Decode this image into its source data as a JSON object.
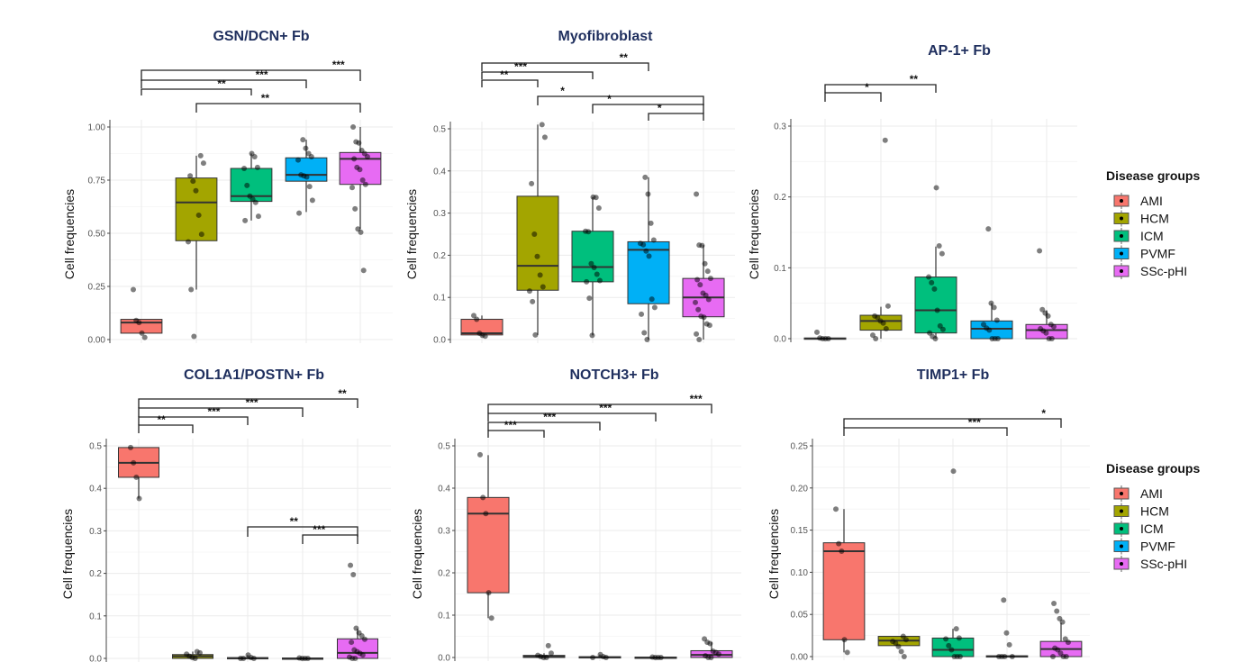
{
  "legend": {
    "title": "Disease groups",
    "groups": [
      {
        "name": "AMI",
        "color": "#F8766D"
      },
      {
        "name": "HCM",
        "color": "#A3A500"
      },
      {
        "name": "ICM",
        "color": "#00BF7D"
      },
      {
        "name": "PVMF",
        "color": "#00B0F6"
      },
      {
        "name": "SSc-pHI",
        "color": "#E76BF3"
      }
    ]
  },
  "chart_data": [
    {
      "type": "box",
      "title": "GSN/DCN+ Fb",
      "ylabel": "Cell frequencies",
      "xlabel": "",
      "ylim": [
        0,
        1.0
      ],
      "yticks": [
        "0.00",
        "0.25",
        "0.50",
        "0.75",
        "1.00"
      ],
      "ytick_values": [
        0,
        0.25,
        0.5,
        0.75,
        1.0
      ],
      "categories": [
        "AMI",
        "HCM",
        "ICM",
        "PVMF",
        "SSc-pHI"
      ],
      "boxes": [
        {
          "q1": 0.03,
          "median": 0.08,
          "q3": 0.095,
          "wlo": 0.03,
          "whi": 0.095
        },
        {
          "q1": 0.465,
          "median": 0.645,
          "q3": 0.76,
          "wlo": 0.235,
          "whi": 0.865
        },
        {
          "q1": 0.65,
          "median": 0.675,
          "q3": 0.805,
          "wlo": 0.56,
          "whi": 0.875
        },
        {
          "q1": 0.745,
          "median": 0.775,
          "q3": 0.855,
          "wlo": 0.6,
          "whi": 0.94
        },
        {
          "q1": 0.73,
          "median": 0.85,
          "q3": 0.88,
          "wlo": 0.52,
          "whi": 1.0
        }
      ],
      "points": [
        [
          0.235,
          0.09,
          0.08,
          0.03,
          0.01
        ],
        [
          0.865,
          0.83,
          0.77,
          0.745,
          0.7,
          0.585,
          0.495,
          0.46,
          0.235,
          0.015
        ],
        [
          0.875,
          0.86,
          0.81,
          0.805,
          0.725,
          0.675,
          0.66,
          0.645,
          0.58,
          0.56
        ],
        [
          0.94,
          0.9,
          0.875,
          0.86,
          0.845,
          0.775,
          0.77,
          0.765,
          0.72,
          0.655,
          0.595
        ],
        [
          1.0,
          0.93,
          0.925,
          0.89,
          0.875,
          0.86,
          0.85,
          0.81,
          0.8,
          0.75,
          0.73,
          0.715,
          0.615,
          0.52,
          0.505,
          0.325
        ]
      ],
      "comparisons": [
        {
          "from": 0,
          "to": 4,
          "label": "***"
        },
        {
          "from": 0,
          "to": 3,
          "label": "***"
        },
        {
          "from": 0,
          "to": 2,
          "label": "**"
        },
        {
          "from": 1,
          "to": 4,
          "label": "**"
        }
      ]
    },
    {
      "type": "box",
      "title": "Myofibroblast",
      "ylabel": "Cell frequencies",
      "xlabel": "",
      "ylim": [
        0,
        0.5
      ],
      "yticks": [
        "0.0",
        "0.1",
        "0.2",
        "0.3",
        "0.4",
        "0.5"
      ],
      "ytick_values": [
        0,
        0.1,
        0.2,
        0.3,
        0.4,
        0.5
      ],
      "categories": [
        "AMI",
        "HCM",
        "ICM",
        "PVMF",
        "SSc-pHI"
      ],
      "boxes": [
        {
          "q1": 0.011,
          "median": 0.015,
          "q3": 0.048,
          "wlo": 0.008,
          "whi": 0.057
        },
        {
          "q1": 0.117,
          "median": 0.175,
          "q3": 0.34,
          "wlo": 0.011,
          "whi": 0.51
        },
        {
          "q1": 0.137,
          "median": 0.172,
          "q3": 0.257,
          "wlo": 0.01,
          "whi": 0.338
        },
        {
          "q1": 0.085,
          "median": 0.213,
          "q3": 0.232,
          "wlo": 0.0,
          "whi": 0.385
        },
        {
          "q1": 0.054,
          "median": 0.1,
          "q3": 0.145,
          "wlo": 0.0,
          "whi": 0.224
        }
      ],
      "points": [
        [
          0.057,
          0.048,
          0.015,
          0.01,
          0.008
        ],
        [
          0.51,
          0.48,
          0.37,
          0.25,
          0.197,
          0.153,
          0.125,
          0.115,
          0.09,
          0.011
        ],
        [
          0.338,
          0.337,
          0.312,
          0.257,
          0.256,
          0.18,
          0.171,
          0.155,
          0.14,
          0.137,
          0.098,
          0.01
        ],
        [
          0.385,
          0.345,
          0.276,
          0.236,
          0.228,
          0.225,
          0.21,
          0.198,
          0.096,
          0.076,
          0.06,
          0.016,
          0.0
        ],
        [
          0.345,
          0.224,
          0.223,
          0.18,
          0.162,
          0.145,
          0.142,
          0.13,
          0.11,
          0.105,
          0.095,
          0.088,
          0.071,
          0.055,
          0.053,
          0.037,
          0.034,
          0.013,
          0.0
        ]
      ],
      "comparisons": [
        {
          "from": 0,
          "to": 3,
          "label": "**"
        },
        {
          "from": 0,
          "to": 2,
          "label": "***"
        },
        {
          "from": 0,
          "to": 1,
          "label": "**"
        },
        {
          "from": 1,
          "to": 4,
          "label": "*"
        },
        {
          "from": 2,
          "to": 4,
          "label": "*"
        },
        {
          "from": 3,
          "to": 4,
          "label": "*"
        }
      ]
    },
    {
      "type": "box",
      "title": "AP-1+ Fb",
      "ylabel": "Cell frequencies",
      "xlabel": "",
      "ylim": [
        0,
        0.3
      ],
      "yticks": [
        "0.0",
        "0.1",
        "0.2",
        "0.3"
      ],
      "ytick_values": [
        0,
        0.1,
        0.2,
        0.3
      ],
      "categories": [
        "AMI",
        "HCM",
        "ICM",
        "PVMF",
        "SSc-pHI"
      ],
      "boxes": [
        {
          "q1": 0.0,
          "median": 0.0,
          "q3": 0.001,
          "wlo": 0.0,
          "whi": 0.001
        },
        {
          "q1": 0.012,
          "median": 0.025,
          "q3": 0.033,
          "wlo": 0.0,
          "whi": 0.045
        },
        {
          "q1": 0.008,
          "median": 0.04,
          "q3": 0.087,
          "wlo": 0.0,
          "whi": 0.13
        },
        {
          "q1": 0.0,
          "median": 0.014,
          "q3": 0.025,
          "wlo": 0.0,
          "whi": 0.05
        },
        {
          "q1": 0.0,
          "median": 0.012,
          "q3": 0.02,
          "wlo": 0.0,
          "whi": 0.04
        }
      ],
      "points": [
        [
          0.009,
          0.001,
          0.0,
          0.0,
          0.0
        ],
        [
          0.28,
          0.046,
          0.032,
          0.03,
          0.025,
          0.022,
          0.014,
          0.005,
          0.0
        ],
        [
          0.213,
          0.131,
          0.12,
          0.087,
          0.079,
          0.07,
          0.04,
          0.018,
          0.013,
          0.008,
          0.003,
          0.0
        ],
        [
          0.155,
          0.05,
          0.044,
          0.026,
          0.02,
          0.015,
          0.012,
          0.0,
          0.0,
          0.0
        ],
        [
          0.124,
          0.041,
          0.036,
          0.032,
          0.02,
          0.017,
          0.014,
          0.011,
          0.008,
          0.0,
          0.0
        ]
      ],
      "comparisons": [
        {
          "from": 0,
          "to": 2,
          "label": "**"
        },
        {
          "from": 0,
          "to": 1,
          "label": "*"
        }
      ]
    },
    {
      "type": "box",
      "title": "COL1A1/POSTN+ Fb",
      "ylabel": "Cell frequencies",
      "xlabel": "",
      "ylim": [
        0,
        0.5
      ],
      "yticks": [
        "0.0",
        "0.1",
        "0.2",
        "0.3",
        "0.4",
        "0.5"
      ],
      "ytick_values": [
        0,
        0.1,
        0.2,
        0.3,
        0.4,
        0.5
      ],
      "categories": [
        "AMI",
        "HCM",
        "ICM",
        "PVMF",
        "SSc-pHI"
      ],
      "boxes": [
        {
          "q1": 0.426,
          "median": 0.46,
          "q3": 0.496,
          "wlo": 0.376,
          "whi": 0.496
        },
        {
          "q1": 0.0,
          "median": 0.005,
          "q3": 0.009,
          "wlo": 0.0,
          "whi": 0.016
        },
        {
          "q1": 0.0,
          "median": 0.0,
          "q3": 0.002,
          "wlo": 0.0,
          "whi": 0.008
        },
        {
          "q1": 0.0,
          "median": 0.0,
          "q3": 0.001,
          "wlo": 0.0,
          "whi": 0.001
        },
        {
          "q1": 0.0,
          "median": 0.013,
          "q3": 0.046,
          "wlo": 0.0,
          "whi": 0.07
        }
      ],
      "points": [
        [
          0.496,
          0.46,
          0.426,
          0.376
        ],
        [
          0.016,
          0.013,
          0.01,
          0.005,
          0.002,
          0.0
        ],
        [
          0.008,
          0.002,
          0.0,
          0.0,
          0.0
        ],
        [
          0.001,
          0.0,
          0.0,
          0.0
        ],
        [
          0.219,
          0.197,
          0.071,
          0.06,
          0.053,
          0.045,
          0.038,
          0.02,
          0.016,
          0.012,
          0.008,
          0.003,
          0.0,
          0.0
        ]
      ],
      "comparisons": [
        {
          "from": 0,
          "to": 4,
          "label": "**"
        },
        {
          "from": 0,
          "to": 3,
          "label": "***"
        },
        {
          "from": 0,
          "to": 2,
          "label": "***"
        },
        {
          "from": 0,
          "to": 1,
          "label": "**"
        },
        {
          "from": 2,
          "to": 4,
          "label": "**"
        },
        {
          "from": 3,
          "to": 4,
          "label": "***"
        }
      ]
    },
    {
      "type": "box",
      "title": "NOTCH3+ Fb",
      "ylabel": "Cell frequencies",
      "xlabel": "",
      "ylim": [
        0,
        0.5
      ],
      "yticks": [
        "0.0",
        "0.1",
        "0.2",
        "0.3",
        "0.4",
        "0.5"
      ],
      "ytick_values": [
        0,
        0.1,
        0.2,
        0.3,
        0.4,
        0.5
      ],
      "categories": [
        "AMI",
        "HCM",
        "ICM",
        "PVMF",
        "SSc-pHI"
      ],
      "boxes": [
        {
          "q1": 0.153,
          "median": 0.34,
          "q3": 0.378,
          "wlo": 0.093,
          "whi": 0.478
        },
        {
          "q1": 0.0,
          "median": 0.002,
          "q3": 0.005,
          "wlo": 0.0,
          "whi": 0.01
        },
        {
          "q1": 0.0,
          "median": 0.0,
          "q3": 0.002,
          "wlo": 0.0,
          "whi": 0.007
        },
        {
          "q1": 0.0,
          "median": 0.0,
          "q3": 0.001,
          "wlo": 0.0,
          "whi": 0.001
        },
        {
          "q1": 0.0,
          "median": 0.006,
          "q3": 0.016,
          "wlo": 0.0,
          "whi": 0.036
        }
      ],
      "points": [
        [
          0.479,
          0.378,
          0.34,
          0.153,
          0.093
        ],
        [
          0.028,
          0.01,
          0.005,
          0.002,
          0.0,
          0.0
        ],
        [
          0.007,
          0.002,
          0.0,
          0.0
        ],
        [
          0.001,
          0.0,
          0.0,
          0.0
        ],
        [
          0.044,
          0.036,
          0.033,
          0.015,
          0.012,
          0.008,
          0.004,
          0.0,
          0.0
        ]
      ],
      "comparisons": [
        {
          "from": 0,
          "to": 4,
          "label": "***"
        },
        {
          "from": 0,
          "to": 3,
          "label": "***"
        },
        {
          "from": 0,
          "to": 2,
          "label": "***"
        },
        {
          "from": 0,
          "to": 1,
          "label": "***"
        }
      ]
    },
    {
      "type": "box",
      "title": "TIMP1+ Fb",
      "ylabel": "Cell frequencies",
      "xlabel": "",
      "ylim": [
        0,
        0.25
      ],
      "yticks": [
        "0.00",
        "0.05",
        "0.10",
        "0.15",
        "0.20",
        "0.25"
      ],
      "ytick_values": [
        0,
        0.05,
        0.1,
        0.15,
        0.2,
        0.25
      ],
      "categories": [
        "AMI",
        "HCM",
        "ICM",
        "PVMF",
        "SSc-pHI"
      ],
      "boxes": [
        {
          "q1": 0.02,
          "median": 0.125,
          "q3": 0.135,
          "wlo": 0.005,
          "whi": 0.175
        },
        {
          "q1": 0.013,
          "median": 0.019,
          "q3": 0.024,
          "wlo": 0.013,
          "whi": 0.024
        },
        {
          "q1": 0.0,
          "median": 0.008,
          "q3": 0.022,
          "wlo": 0.0,
          "whi": 0.033
        },
        {
          "q1": 0.0,
          "median": 0.0,
          "q3": 0.001,
          "wlo": 0.0,
          "whi": 0.001
        },
        {
          "q1": 0.0,
          "median": 0.009,
          "q3": 0.018,
          "wlo": 0.0,
          "whi": 0.04
        }
      ],
      "points": [
        [
          0.175,
          0.134,
          0.125,
          0.02,
          0.005
        ],
        [
          0.024,
          0.02,
          0.018,
          0.016,
          0.012,
          0.006,
          0.0
        ],
        [
          0.22,
          0.033,
          0.022,
          0.021,
          0.013,
          0.008,
          0.0,
          0.0,
          0.0
        ],
        [
          0.067,
          0.028,
          0.014,
          0.0,
          0.0,
          0.0,
          0.0
        ],
        [
          0.063,
          0.054,
          0.045,
          0.041,
          0.021,
          0.017,
          0.01,
          0.008,
          0.004,
          0.0,
          0.0,
          0.0
        ]
      ],
      "comparisons": [
        {
          "from": 0,
          "to": 4,
          "label": "*"
        },
        {
          "from": 0,
          "to": 3,
          "label": "***"
        }
      ]
    }
  ]
}
